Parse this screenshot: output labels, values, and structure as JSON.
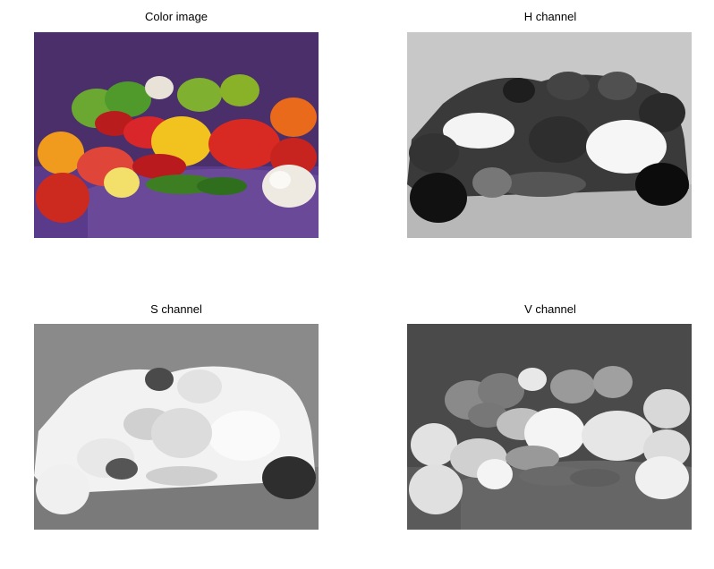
{
  "figure": {
    "panels": [
      {
        "title": "Color image"
      },
      {
        "title": "H channel"
      },
      {
        "title": "S channel"
      },
      {
        "title": "V channel"
      }
    ]
  }
}
